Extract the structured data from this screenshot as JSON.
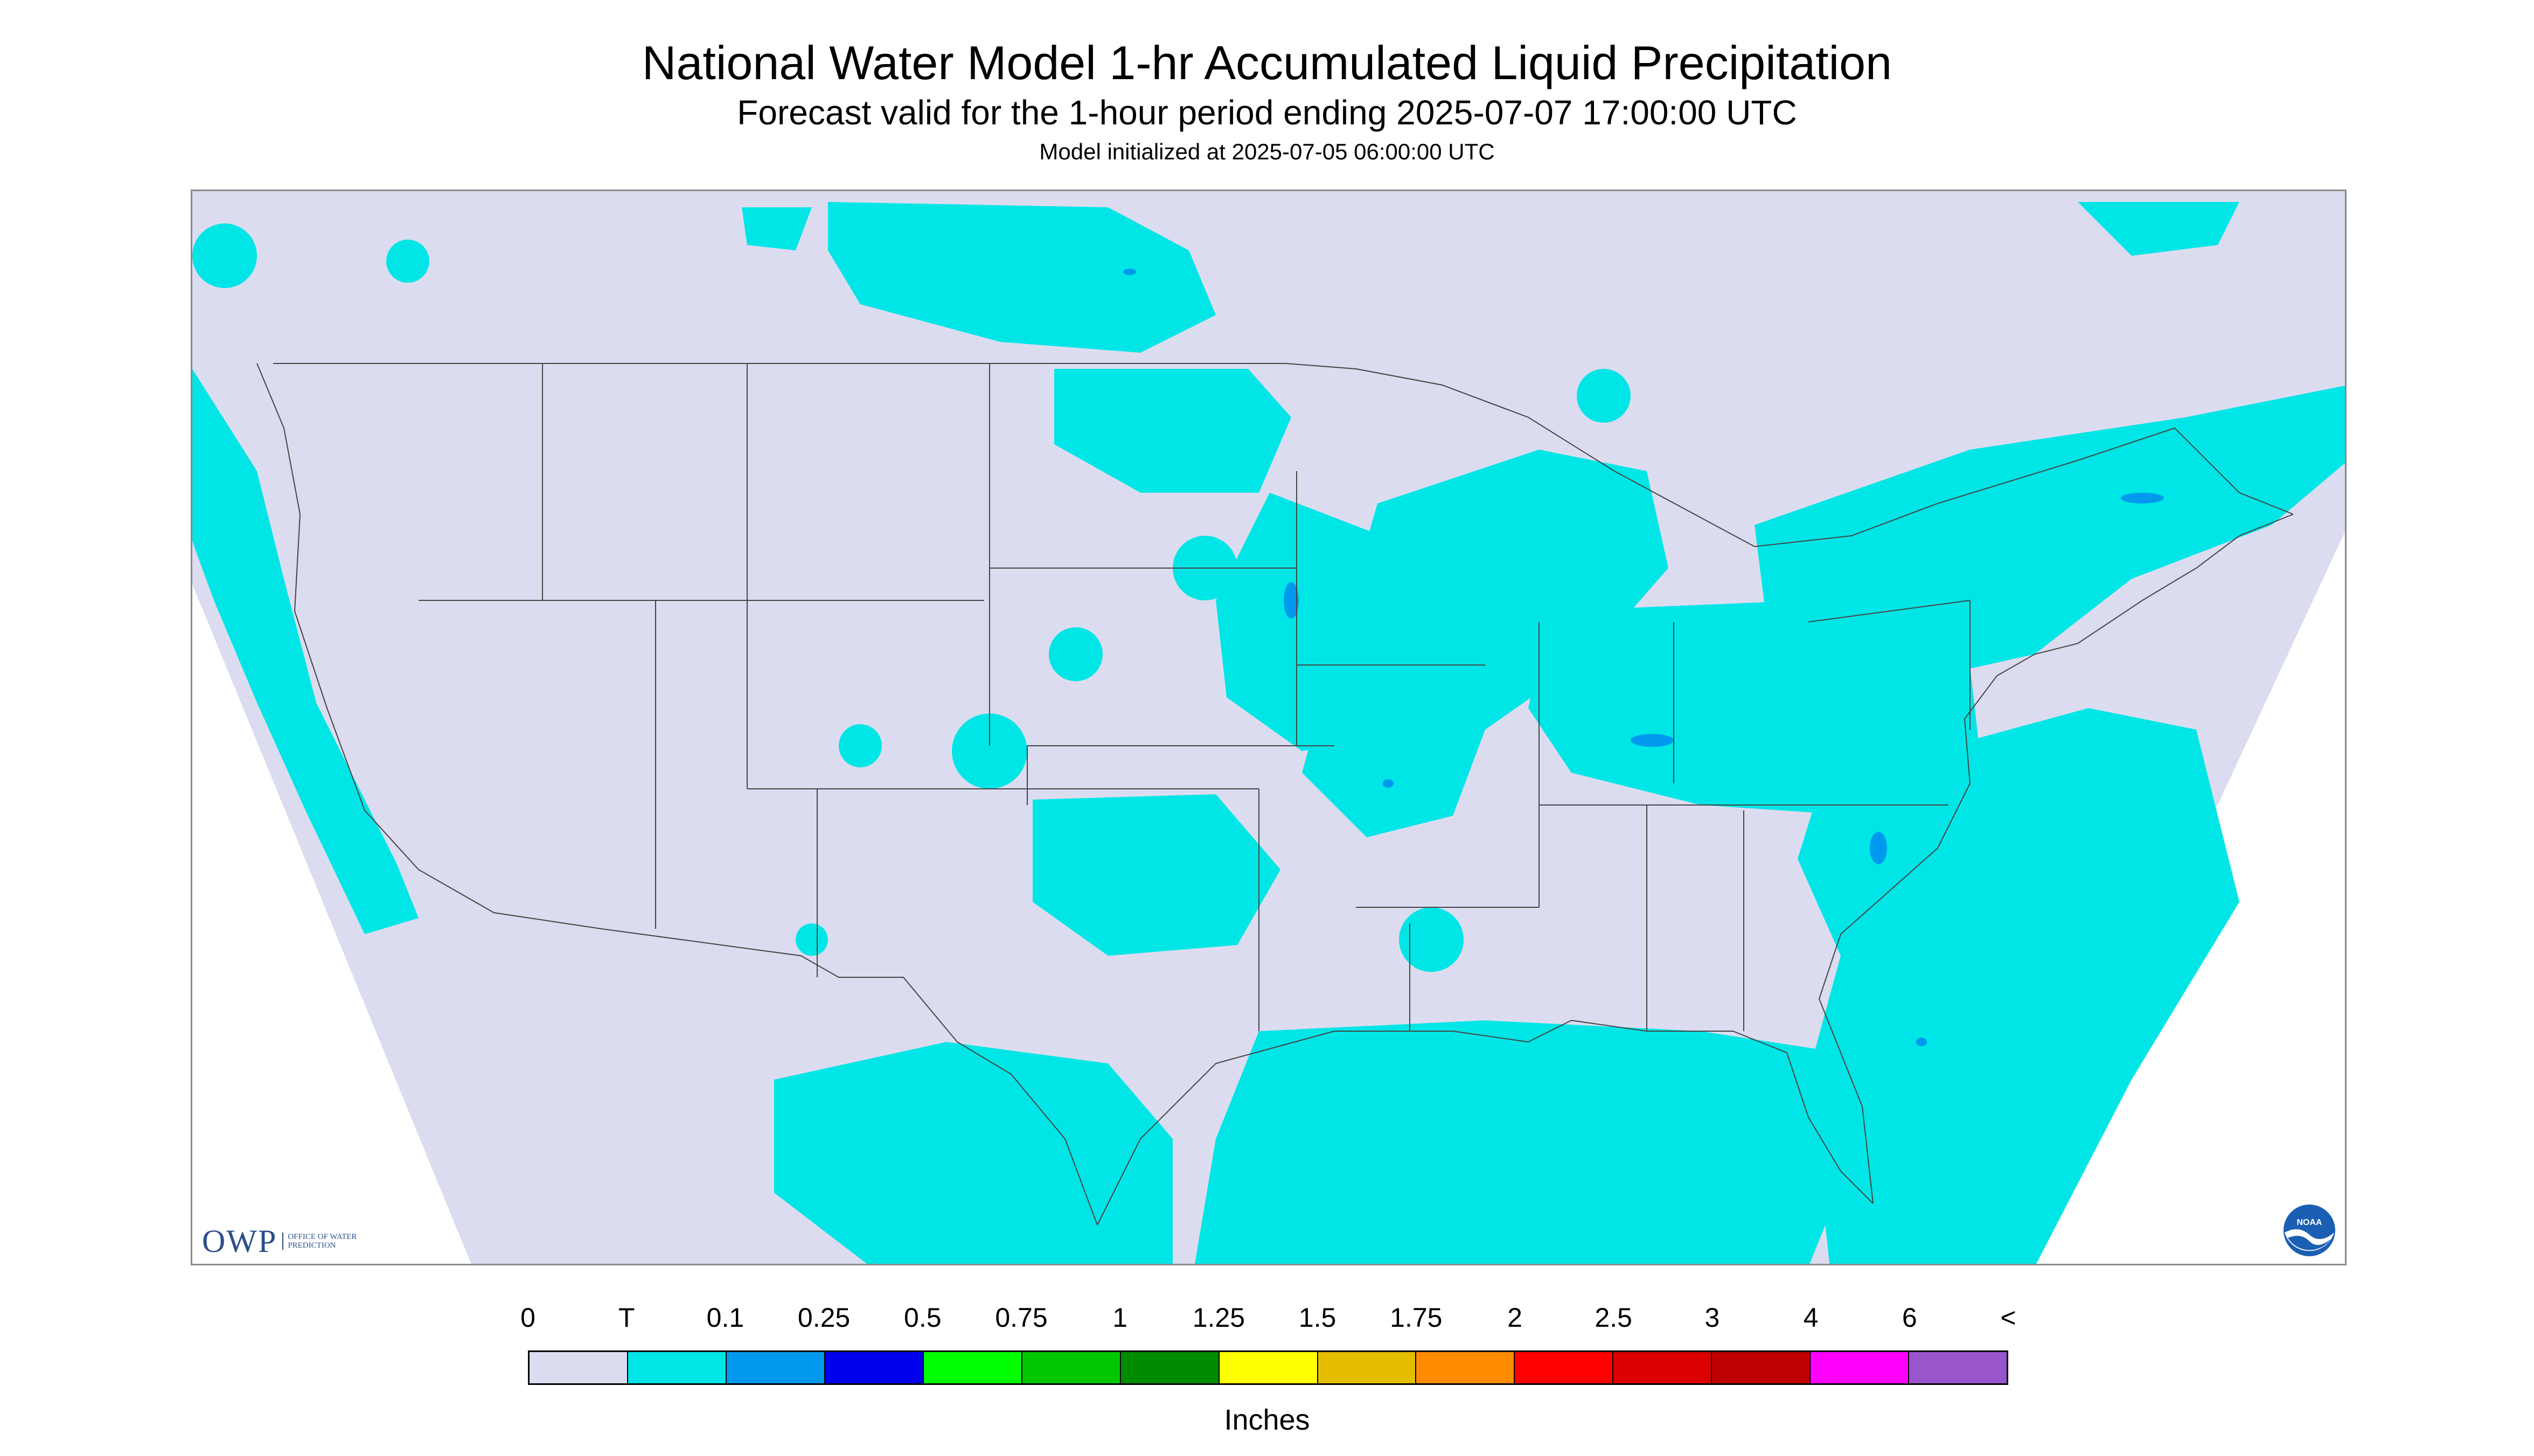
{
  "title": "National Water Model 1-hr Accumulated Liquid Precipitation",
  "subtitle": "Forecast valid for the 1-hour period ending 2025-07-07 17:00:00 UTC",
  "init_line": "Model initialized at 2025-07-05 06:00:00 UTC",
  "logos": {
    "owp_word": "OWP",
    "owp_text": "OFFICE OF WATER PREDICTION",
    "noaa_text": "NOAA"
  },
  "legend": {
    "labels": [
      "0",
      "T",
      "0.1",
      "0.25",
      "0.5",
      "0.75",
      "1",
      "1.25",
      "1.5",
      "1.75",
      "2",
      "2.5",
      "3",
      "4",
      "6",
      "<"
    ],
    "colors": [
      "#dcdcf0",
      "#00e6e6",
      "#0099ee",
      "#0000ee",
      "#00ff00",
      "#00c800",
      "#008c00",
      "#ffff00",
      "#e6be00",
      "#ff8c00",
      "#ff0000",
      "#dc0000",
      "#be0000",
      "#ff00ff",
      "#9955cc"
    ],
    "units": "Inches"
  },
  "map_colors": {
    "no_data": "#ffffff",
    "zero": "#dcdcf0",
    "trace": "#00e6e6",
    "light": "#0099ee",
    "boundary": "#444444"
  }
}
